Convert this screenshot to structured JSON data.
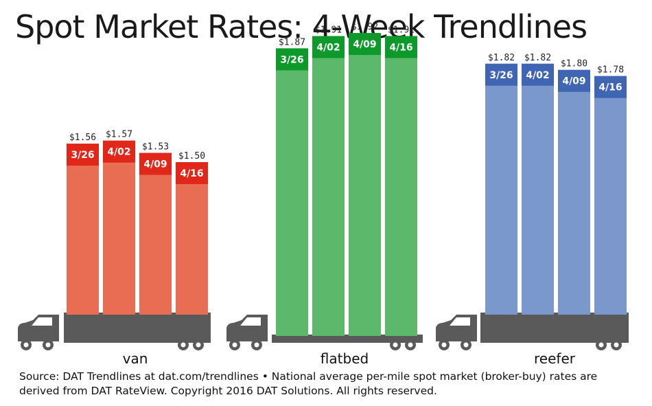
{
  "chart_data": {
    "type": "bar",
    "title": "Spot Market Rates: 4-Week Trendlines",
    "unit": "$ per mile",
    "groups": [
      {
        "name": "van",
        "bar_color": "#e86d52",
        "cap_color": "#e0271a",
        "bars": [
          {
            "week": "3/26",
            "value": 1.56,
            "label": "$1.56"
          },
          {
            "week": "4/02",
            "value": 1.57,
            "label": "$1.57"
          },
          {
            "week": "4/09",
            "value": 1.53,
            "label": "$1.53"
          },
          {
            "week": "4/16",
            "value": 1.5,
            "label": "$1.50"
          }
        ]
      },
      {
        "name": "flatbed",
        "bar_color": "#5cb86a",
        "cap_color": "#0d9a2a",
        "bars": [
          {
            "week": "3/26",
            "value": 1.87,
            "label": "$1.87"
          },
          {
            "week": "4/02",
            "value": 1.91,
            "label": "$1.91"
          },
          {
            "week": "4/09",
            "value": 1.92,
            "label": "$1.92"
          },
          {
            "week": "4/16",
            "value": 1.91,
            "label": "$1.91"
          }
        ]
      },
      {
        "name": "reefer",
        "bar_color": "#7b98cd",
        "cap_color": "#3f65b3",
        "bars": [
          {
            "week": "3/26",
            "value": 1.82,
            "label": "$1.82"
          },
          {
            "week": "4/02",
            "value": 1.82,
            "label": "$1.82"
          },
          {
            "week": "4/09",
            "value": 1.8,
            "label": "$1.80"
          },
          {
            "week": "4/16",
            "value": 1.78,
            "label": "$1.78"
          }
        ]
      }
    ],
    "truck_color": "#5a5a5a",
    "footnote": "Source: DAT Trendlines at dat.com/trendlines • National average per-mile spot market (broker-buy) rates are derived from DAT RateView. Copyright 2016 DAT Solutions. All rights reserved."
  }
}
